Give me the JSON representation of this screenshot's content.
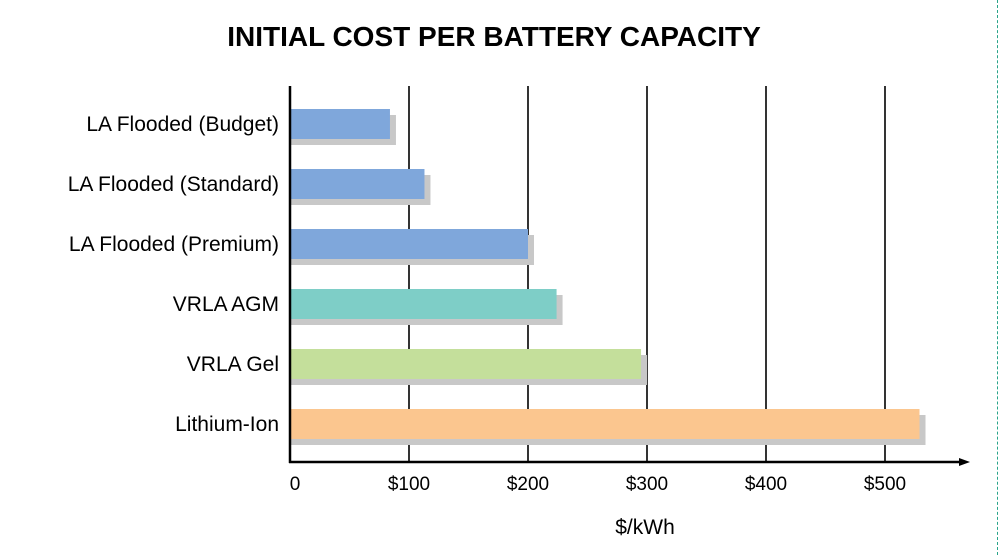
{
  "chart_data": {
    "type": "bar",
    "orientation": "horizontal",
    "title": "INITIAL COST PER BATTERY CAPACITY",
    "xlabel": "$/kWh",
    "ylabel": "",
    "xlim": [
      0,
      560
    ],
    "xticks": [
      {
        "value": 0,
        "label": "0"
      },
      {
        "value": 100,
        "label": "$100"
      },
      {
        "value": 200,
        "label": "$200"
      },
      {
        "value": 300,
        "label": "$300"
      },
      {
        "value": 400,
        "label": "$400"
      },
      {
        "value": 500,
        "label": "$500"
      }
    ],
    "grid": true,
    "categories": [
      "LA Flooded (Budget)",
      "LA Flooded (Standard)",
      "LA Flooded (Premium)",
      "VRLA AGM",
      "VRLA Gel",
      "Lithium-Ion"
    ],
    "values": [
      84,
      113,
      200,
      224,
      295,
      529
    ],
    "colors": [
      "#7fa7db",
      "#7fa7db",
      "#7fa7db",
      "#7ecec7",
      "#c4df9b",
      "#fbc68f"
    ],
    "shadow_color": "#c8c8c8",
    "axis_color": "#000000"
  }
}
